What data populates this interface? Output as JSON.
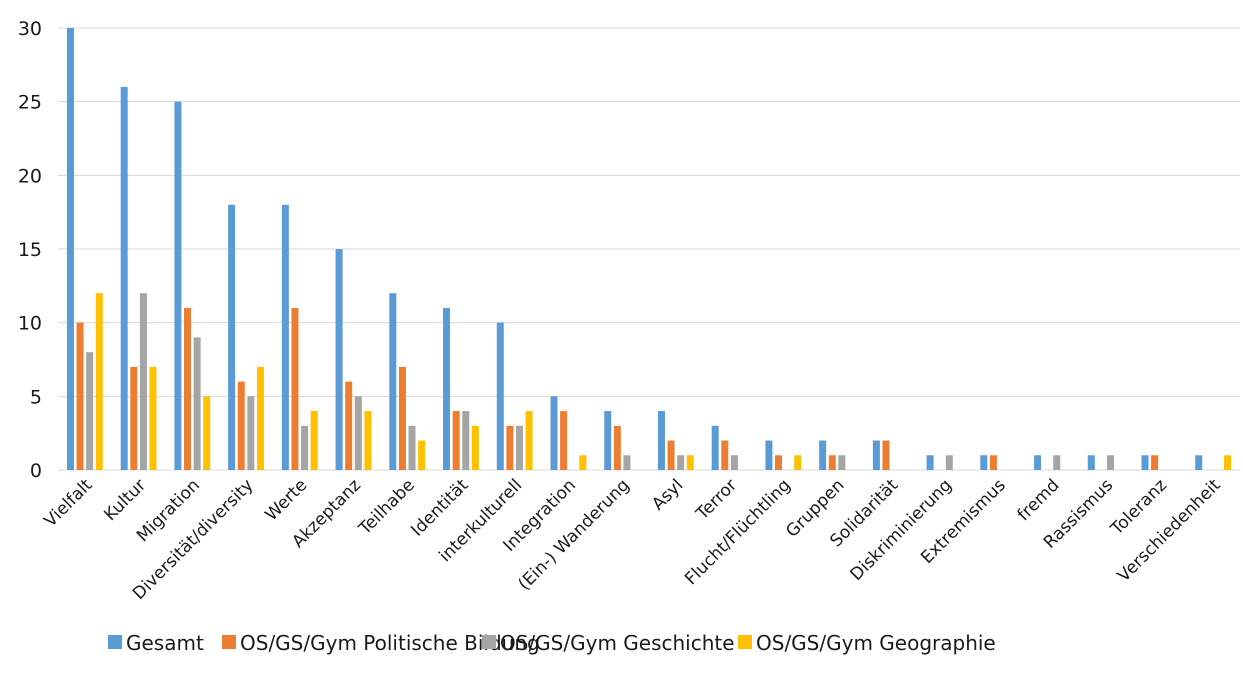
{
  "chart_data": {
    "type": "bar",
    "categories": [
      "Vielfalt",
      "Kultur",
      "Migration",
      "Diversität/diversity",
      "Werte",
      "Akzeptanz",
      "Teilhabe",
      "Identität",
      "interkulturell",
      "Integration",
      "(Ein-) Wanderung",
      "Asyl",
      "Terror",
      "Flucht/Flüchtling",
      "Gruppen",
      "Solidarität",
      "Diskriminierung",
      "Extremismus",
      "fremd",
      "Rassismus",
      "Toleranz",
      "Verschiedenheit"
    ],
    "series": [
      {
        "name": "Gesamt",
        "color": "#5b9bd5",
        "values": [
          30,
          26,
          25,
          18,
          18,
          15,
          12,
          11,
          10,
          5,
          4,
          4,
          3,
          2,
          2,
          2,
          1,
          1,
          1,
          1,
          1,
          1
        ]
      },
      {
        "name": "OS/GS/Gym Politische Bildung",
        "color": "#ed7d31",
        "values": [
          10,
          7,
          11,
          6,
          11,
          6,
          7,
          4,
          3,
          4,
          3,
          2,
          2,
          1,
          1,
          2,
          0,
          1,
          0,
          0,
          1,
          0
        ]
      },
      {
        "name": "OS/GS/Gym Geschichte",
        "color": "#a5a5a5",
        "values": [
          8,
          12,
          9,
          5,
          3,
          5,
          3,
          4,
          3,
          0,
          1,
          1,
          1,
          0,
          1,
          0,
          1,
          0,
          1,
          1,
          0,
          0
        ]
      },
      {
        "name": "OS/GS/Gym Geographie",
        "color": "#ffc000",
        "values": [
          12,
          7,
          5,
          7,
          4,
          4,
          2,
          3,
          4,
          1,
          0,
          1,
          0,
          1,
          0,
          0,
          0,
          0,
          0,
          0,
          0,
          1
        ]
      }
    ],
    "ylim": [
      0,
      30
    ],
    "yticks": [
      0,
      5,
      10,
      15,
      20,
      25,
      30
    ],
    "grid": true,
    "legend_position": "bottom"
  }
}
